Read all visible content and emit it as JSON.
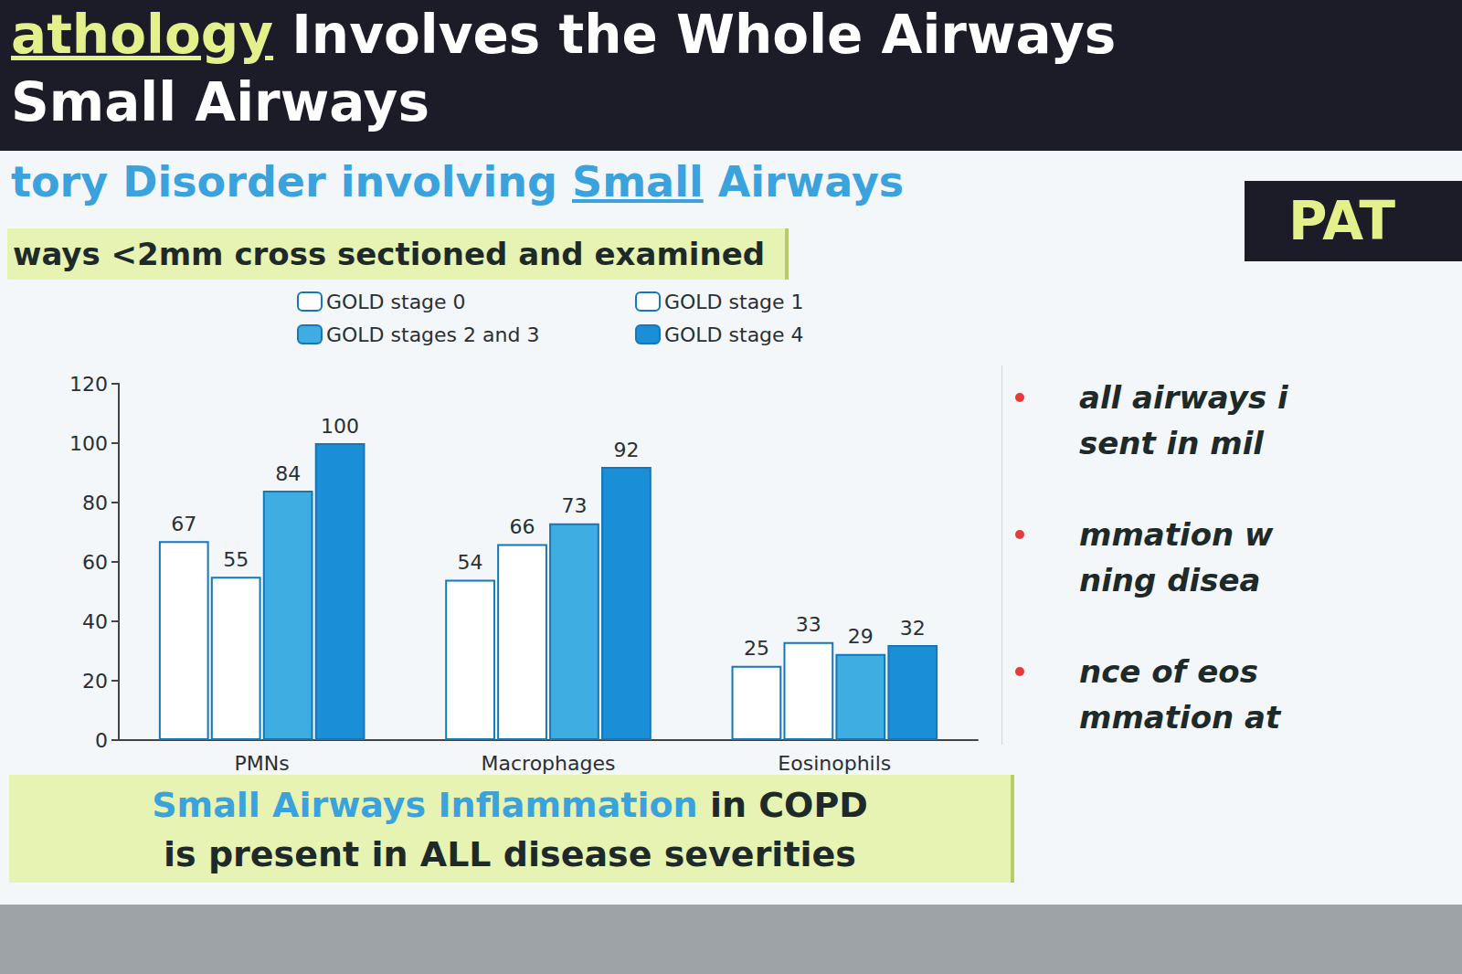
{
  "slide": {
    "title_highlight": "athology",
    "title_rest": "Involves the Whole Airways",
    "title_line2": "Small Airways",
    "subtitle_start": "tory Disorder involving",
    "subtitle_underlined": "Small",
    "subtitle_end": "Airways",
    "box_label": "ways <2mm cross sectioned and examined",
    "side_heading": "PAT",
    "bullets": [
      [
        "all airways i",
        "sent in mil"
      ],
      [
        "mmation w",
        "ning disea"
      ],
      [
        "nce of eos",
        "mmation at"
      ]
    ],
    "conclusion_highlight": "Small Airways Inflammation",
    "conclusion_rest": "in COPD",
    "conclusion_line2": "is present in ALL disease severities"
  },
  "chart_data": {
    "type": "bar",
    "categories": [
      "PMNs",
      "Macrophages",
      "Eosinophils"
    ],
    "series": [
      {
        "name": "GOLD stage 0",
        "color": "#ffffff",
        "values": [
          67,
          54,
          25
        ]
      },
      {
        "name": "GOLD stage 1",
        "color": "#ffffff",
        "values": [
          55,
          66,
          33
        ]
      },
      {
        "name": "GOLD stages 2 and 3",
        "color": "#3eaee2",
        "values": [
          84,
          73,
          29
        ]
      },
      {
        "name": "GOLD stage 4",
        "color": "#1a8fd8",
        "values": [
          100,
          92,
          32
        ]
      }
    ],
    "ylim": [
      0,
      120
    ],
    "yticks": [
      0,
      20,
      40,
      60,
      80,
      100,
      120
    ],
    "grid": false,
    "legend": "top",
    "data_labels": true
  }
}
